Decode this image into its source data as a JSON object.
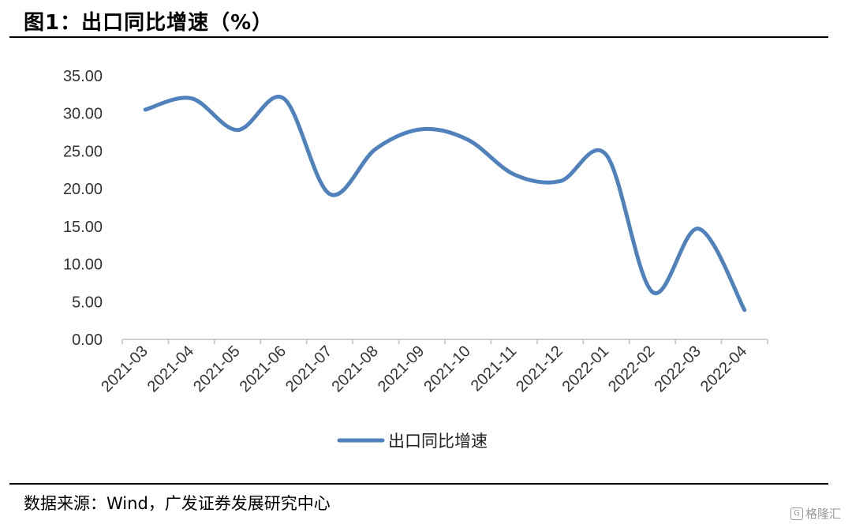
{
  "header": {
    "title": "图1：出口同比增速（%）"
  },
  "footer": {
    "source": "数据来源：Wind，广发证券发展研究中心",
    "watermark": "格隆汇"
  },
  "colors": {
    "series": "#4f81bd",
    "axis": "#bfbfbf"
  },
  "chart_data": {
    "type": "line",
    "title": "",
    "xlabel": "",
    "ylabel": "",
    "ylim": [
      0,
      35
    ],
    "y_ticks": [
      "0.00",
      "5.00",
      "10.00",
      "15.00",
      "20.00",
      "25.00",
      "30.00",
      "35.00"
    ],
    "categories": [
      "2021-03",
      "2021-04",
      "2021-05",
      "2021-06",
      "2021-07",
      "2021-08",
      "2021-09",
      "2021-10",
      "2021-11",
      "2021-12",
      "2022-01",
      "2022-02",
      "2022-03",
      "2022-04"
    ],
    "series": [
      {
        "name": "出口同比增速",
        "values": [
          30.5,
          32.0,
          27.8,
          32.0,
          19.3,
          25.3,
          27.9,
          26.5,
          21.9,
          21.0,
          24.5,
          6.3,
          14.7,
          3.9
        ]
      }
    ],
    "grid": false,
    "legend": "bottom",
    "smooth": true
  }
}
